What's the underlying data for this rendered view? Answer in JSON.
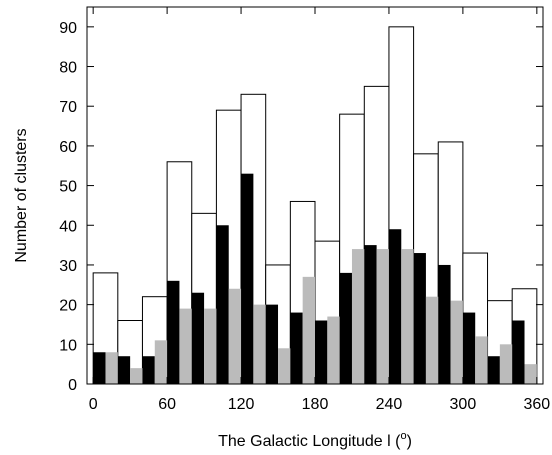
{
  "chart_data": {
    "type": "bar",
    "title": "",
    "xlabel": "The Galactic Longitude l (o)",
    "ylabel": "Number of clusters",
    "xlim": [
      -5,
      365
    ],
    "ylim": [
      0,
      95
    ],
    "xticks": [
      0,
      60,
      120,
      180,
      240,
      300,
      360
    ],
    "yticks": [
      0,
      10,
      20,
      30,
      40,
      50,
      60,
      70,
      80,
      90
    ],
    "bin_starts": [
      0,
      20,
      40,
      60,
      80,
      100,
      120,
      140,
      160,
      180,
      200,
      220,
      240,
      260,
      280,
      300,
      320,
      340
    ],
    "bin_width": 20,
    "grid": false,
    "legend": "none",
    "series": [
      {
        "style": "outline",
        "color": "#ffffff",
        "values": [
          28,
          16,
          22,
          56,
          43,
          69,
          73,
          30,
          46,
          36,
          68,
          75,
          90,
          58,
          61,
          33,
          21,
          24
        ]
      },
      {
        "style": "black",
        "color": "#000000",
        "values": [
          8,
          7,
          7,
          26,
          23,
          40,
          53,
          20,
          18,
          16,
          28,
          35,
          39,
          33,
          30,
          18,
          7,
          16
        ]
      },
      {
        "style": "gray",
        "color": "#bbbbbb",
        "values": [
          8,
          4,
          11,
          19,
          19,
          24,
          20,
          9,
          27,
          17,
          34,
          34,
          34,
          22,
          21,
          12,
          10,
          5
        ]
      }
    ]
  }
}
